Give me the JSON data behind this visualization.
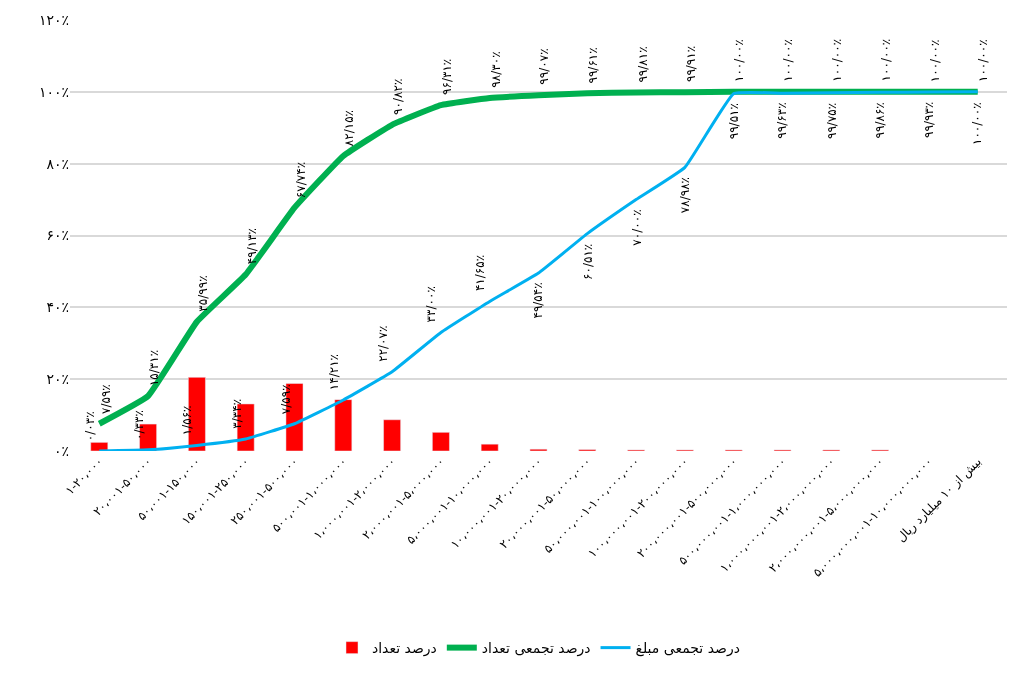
{
  "chart_data": {
    "type": "bar",
    "categories": [
      "۱-۲۰،۰۰۰",
      "۲۰،۰۰۱-۵۰،۰۰۰",
      "۵۰،۰۰۱-۱۵۰،۰۰۰",
      "۱۵۰،۰۰۱-۲۵۰،۰۰۰",
      "۲۵۰،۰۰۱-۵۰۰،۰۰۰",
      "۵۰۰،۰۰۱-۱،۰۰۰،۰۰۰",
      "۱،۰۰۰،۰۰۱-۲،۰۰۰،۰۰۰",
      "۲،۰۰۰،۰۰۱-۵،۰۰۰،۰۰۰",
      "۵،۰۰۰،۰۰۱-۱۰،۰۰۰،۰۰۰",
      "۱۰،۰۰۰،۰۰۱-۲۰،۰۰۰،۰۰۰",
      "۲۰،۰۰۰،۰۰۱-۵۰،۰۰۰،۰۰۰",
      "۵۰،۰۰۰،۰۰۱-۱۰۰،۰۰۰،۰۰۰",
      "۱۰۰،۰۰۰،۰۰۱-۲۰۰،۰۰۰،۰۰۰",
      "۲۰۰،۰۰۰،۰۰۱-۵۰۰،۰۰۰،۰۰۰",
      "۵۰۰،۰۰۰،۰۰۱-۱،۰۰۰،۰۰۰،۰۰۰",
      "۱،۰۰۰،۰۰۰،۰۰۱-۲،۰۰۰،۰۰۰،۰۰۰",
      "۲،۰۰۰،۰۰۰،۰۰۱-۵،۰۰۰،۰۰۰،۰۰۰",
      "۵،۰۰۰،۰۰۰،۰۰۱-۱۰،۰۰۰،۰۰۰،۰۰۰",
      "بیش از ۱۰ میلیارد ریال"
    ],
    "series": [
      {
        "name": "درصد تعداد",
        "color": "#ff0000",
        "values": [
          2.4,
          7.5,
          20.5,
          13.1,
          18.8,
          14.3,
          8.7,
          5.2,
          1.9,
          0.5,
          0.4,
          0.3,
          0.3,
          0.3,
          0.3,
          0.3,
          0.3,
          null,
          null
        ]
      },
      {
        "name": "درصد تجمعی تعداد",
        "type": "line",
        "color": "#00b050",
        "values": [
          7.59,
          15.31,
          35.99,
          49.13,
          67.74,
          82.15,
          90.82,
          96.31,
          98.3,
          99.07,
          99.61,
          99.81,
          99.91,
          100.0,
          100.0,
          100.0,
          100.0,
          100.0,
          100.0
        ],
        "value_labels": [
          "۷/۵۹٪",
          "۱۵/۳۱٪",
          "۳۵/۹۹٪",
          "۴۹/۱۳٪",
          "۶۷/۷۴٪",
          "۸۲/۱۵٪",
          "۹۰/۸۲٪",
          "۹۶/۳۱٪",
          "۹۸/۳۰٪",
          "۹۹/۰۷٪",
          "۹۹/۶۱٪",
          "۹۹/۸۱٪",
          "۹۹/۹۱٪",
          "۱۰۰/۰۰٪",
          "۱۰۰/۰۰٪",
          "۱۰۰/۰۰٪",
          "۱۰۰/۰۰٪",
          "۱۰۰/۰۰٪",
          "۱۰۰/۰۰٪"
        ]
      },
      {
        "name": "درصد تجمعی مبلغ",
        "type": "line",
        "color": "#00b0f0",
        "values": [
          0.03,
          0.33,
          1.56,
          3.34,
          7.59,
          14.21,
          22.07,
          33.0,
          41.65,
          49.54,
          60.51,
          70.0,
          78.98,
          99.51,
          99.63,
          99.75,
          99.86,
          99.93,
          100.0
        ],
        "value_labels": [
          "۰/۰۳٪",
          "۰/۳۳٪",
          "۱/۵۶٪",
          "۳/۳۴٪",
          "۷/۵۹٪",
          "۱۴/۲۱٪",
          "۲۲/۰۷٪",
          "۳۳/۰۰٪",
          "۴۱/۶۵٪",
          "۴۹/۵۴٪",
          "۶۰/۵۱٪",
          "۷۰/۰۰٪",
          "۷۸/۹۸٪",
          "۹۹/۵۱٪",
          "۹۹/۶۳٪",
          "۹۹/۷۵٪",
          "۹۹/۸۶٪",
          "۹۹/۹۳٪",
          "۱۰۰/۰۰٪"
        ]
      }
    ],
    "ylim": [
      0,
      120
    ],
    "yticks": [
      {
        "value": 0,
        "label": "۰٪"
      },
      {
        "value": 20,
        "label": "۲۰٪"
      },
      {
        "value": 40,
        "label": "۴۰٪"
      },
      {
        "value": 60,
        "label": "۶۰٪"
      },
      {
        "value": 80,
        "label": "۸۰٪"
      },
      {
        "value": 100,
        "label": "۱۰۰٪"
      },
      {
        "value": 120,
        "label": "۱۲۰٪"
      }
    ],
    "grid": "y",
    "legend": "bottom"
  }
}
